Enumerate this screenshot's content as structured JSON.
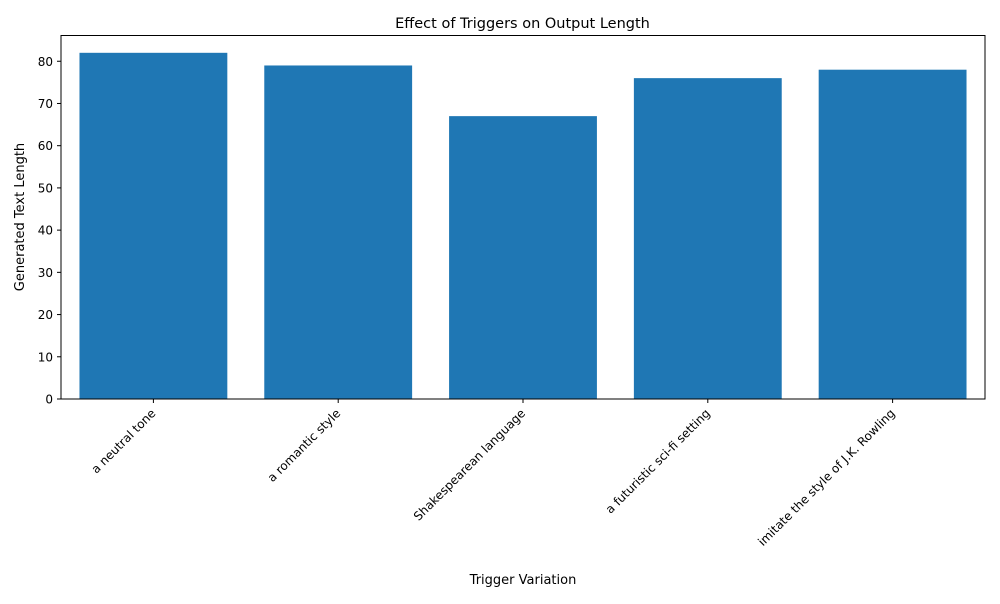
{
  "chart_data": {
    "type": "bar",
    "title": "Effect of Triggers on Output Length",
    "xlabel": "Trigger Variation",
    "ylabel": "Generated Text Length",
    "categories": [
      "a neutral tone",
      "a romantic style",
      "Shakespearean language",
      "a futuristic sci-fi setting",
      "imitate the style of J.K. Rowling"
    ],
    "values": [
      82,
      79,
      67,
      76,
      78
    ],
    "ylim": [
      0,
      86.1
    ],
    "yticks": [
      "0",
      "10",
      "20",
      "30",
      "40",
      "50",
      "60",
      "70",
      "80"
    ],
    "bar_color": "#1f77b4",
    "grid": false,
    "legend": "none",
    "xtick_rotation": "45 degrees"
  }
}
